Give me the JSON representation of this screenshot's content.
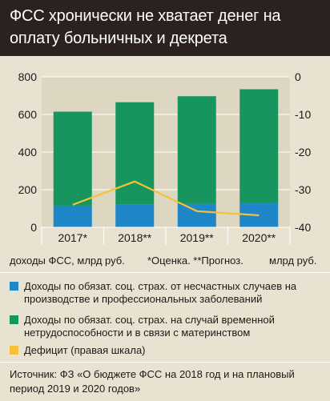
{
  "title": "ФСС хронически не хватает денег на оплату больничных и декрета",
  "notes": {
    "left": "доходы ФСС, млрд руб.",
    "mid": "*Оценка. **Прогноз.",
    "right": "млрд руб."
  },
  "legend": [
    {
      "label": "Доходы по обязат. соц. страх. от несчастных случаев на производстве и профессиональных заболеваний",
      "color": "#1f86c7"
    },
    {
      "label": "Доходы по обязат. соц. страх. на случай временной нетрудоспособности и в связи с материнством",
      "color": "#16955e"
    },
    {
      "label": "Дефицит (правая шкала)",
      "color": "#f5c03a"
    }
  ],
  "source": "Источник: ФЗ «О бюджете ФСС на 2018 год и на плановый период 2019 и 2020 годов»",
  "chart_data": {
    "type": "bar",
    "categories": [
      "2017*",
      "2018**",
      "2019**",
      "2020**"
    ],
    "series": [
      {
        "name": "Доходы по обязат. соц. страх. от несчастных случаев на производстве и профессиональных заболеваний",
        "values": [
          115,
          120,
          125,
          130
        ],
        "color": "#1f86c7",
        "axis": "left",
        "kind": "bar"
      },
      {
        "name": "Доходы по обязат. соц. страх. на случай временной нетрудоспособности и в связи с материнством",
        "values": [
          500,
          545,
          572,
          604
        ],
        "color": "#16955e",
        "axis": "left",
        "kind": "bar"
      },
      {
        "name": "Дефицит (правая шкала)",
        "values": [
          -34,
          -27.8,
          -35.7,
          -36.8
        ],
        "color": "#f5c03a",
        "axis": "right",
        "kind": "line"
      }
    ],
    "ylim": [
      0,
      800
    ],
    "yticks": [
      0,
      200,
      400,
      600,
      800
    ],
    "y2lim": [
      -40,
      0
    ],
    "y2ticks": [
      0,
      -10,
      -20,
      -30,
      -40
    ],
    "grid": true
  }
}
